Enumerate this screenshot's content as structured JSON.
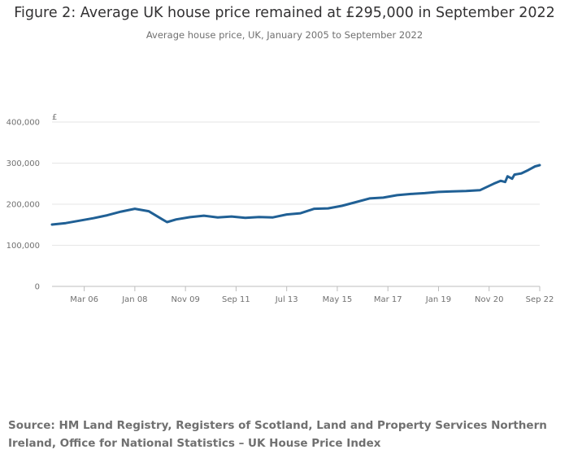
{
  "chart_data": {
    "type": "line",
    "title": "Figure 2: Average UK house price remained at £295,000 in September 2022",
    "subtitle": "Average house price, UK, January 2005 to September 2022",
    "ylabel": "£",
    "xlabel": "",
    "ylim": [
      0,
      400000
    ],
    "yticks": [
      0,
      100000,
      200000,
      300000,
      400000
    ],
    "ytick_labels": [
      "0",
      "100,000",
      "200,000",
      "300,000",
      "400,000"
    ],
    "xticks": [
      "2006-03",
      "2008-01",
      "2009-11",
      "2011-09",
      "2013-07",
      "2015-05",
      "2017-03",
      "2019-01",
      "2020-11",
      "2022-09"
    ],
    "xtick_labels": [
      "Mar 06",
      "Jan 08",
      "Nov 09",
      "Sep 11",
      "Jul 13",
      "May 15",
      "Mar 17",
      "Jan 19",
      "Nov 20",
      "Sep 22"
    ],
    "xlim": [
      "2005-01",
      "2022-09"
    ],
    "grid": true,
    "color": "#206095",
    "series": [
      {
        "name": "",
        "x": [
          "2005-01",
          "2005-07",
          "2006-01",
          "2006-07",
          "2007-01",
          "2007-07",
          "2008-01",
          "2008-07",
          "2009-01",
          "2009-03",
          "2009-07",
          "2010-01",
          "2010-07",
          "2011-01",
          "2011-07",
          "2012-01",
          "2012-07",
          "2013-01",
          "2013-07",
          "2014-01",
          "2014-07",
          "2015-01",
          "2015-07",
          "2016-01",
          "2016-07",
          "2017-01",
          "2017-07",
          "2018-01",
          "2018-07",
          "2019-01",
          "2019-07",
          "2020-01",
          "2020-07",
          "2021-01",
          "2021-04",
          "2021-06",
          "2021-07",
          "2021-09",
          "2021-10",
          "2022-01",
          "2022-04",
          "2022-07",
          "2022-09"
        ],
        "values": [
          150500,
          154000,
          160000,
          166000,
          173000,
          182000,
          189000,
          183000,
          163000,
          156500,
          163000,
          168500,
          172000,
          168000,
          170000,
          167000,
          169000,
          168000,
          175000,
          178000,
          189000,
          190000,
          196000,
          205000,
          214000,
          216000,
          222000,
          225000,
          227000,
          230000,
          231000,
          232000,
          234000,
          250000,
          257000,
          254000,
          268000,
          262000,
          272000,
          275000,
          283000,
          292000,
          295000
        ]
      }
    ]
  },
  "source": "Source: HM Land Registry, Registers of Scotland, Land and Property Services Northern Ireland, Office for National Statistics – UK House Price Index"
}
